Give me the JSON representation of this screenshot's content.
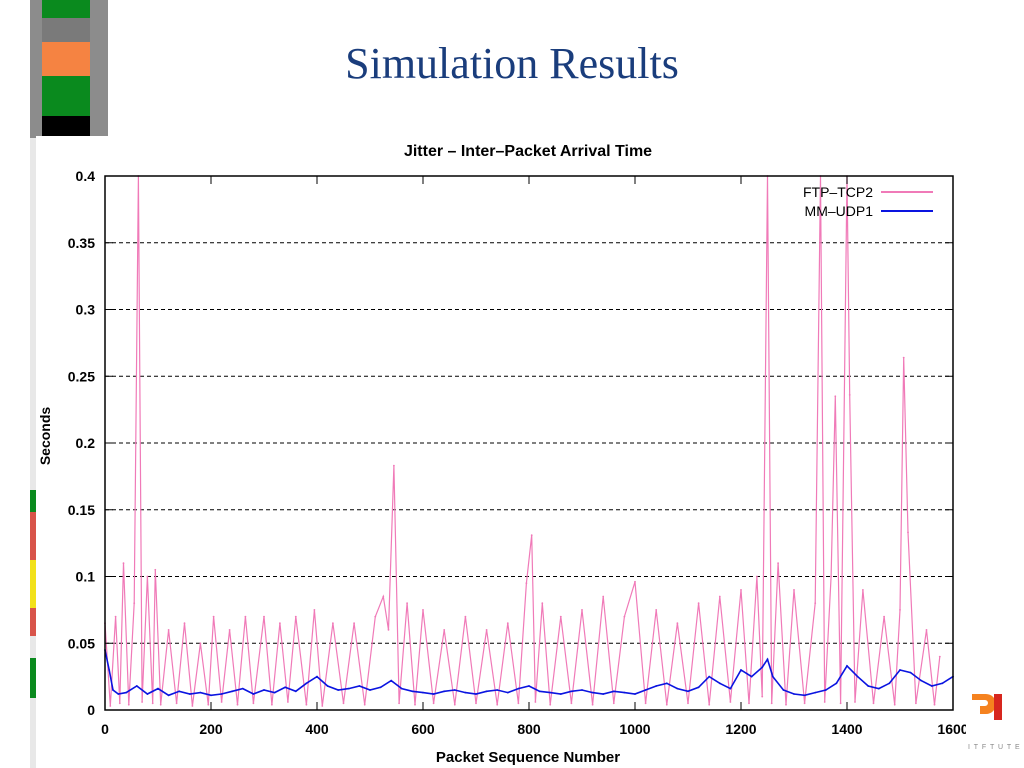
{
  "slide": {
    "title": "Simulation Results",
    "template_colors": {
      "title": "#1a3d7c",
      "strip_green": "#0a8a1e",
      "strip_orange": "#f58342",
      "strip_black": "#000000",
      "strip_gray": "#8c8c8c",
      "logo_orange": "#f5821f",
      "logo_red": "#d7261e"
    }
  },
  "chart_data": {
    "type": "line",
    "title": "Jitter – Inter–Packet Arrival Time",
    "xlabel": "Packet Sequence Number",
    "ylabel": "Seconds",
    "xlim": [
      0,
      1600
    ],
    "ylim": [
      0,
      0.4
    ],
    "xticks": [
      "0",
      "200",
      "400",
      "600",
      "800",
      "1000",
      "1200",
      "1400",
      "1600"
    ],
    "yticks": [
      "0",
      "0.05",
      "0.1",
      "0.15",
      "0.2",
      "0.25",
      "0.3",
      "0.35",
      "0.4"
    ],
    "grid": "horizontal-dashed",
    "legend": "top-right",
    "series": [
      {
        "name": "FTP–TCP2",
        "color": "#f07ab8",
        "x": [
          0,
          10,
          20,
          28,
          35,
          45,
          55,
          63,
          70,
          80,
          90,
          95,
          105,
          120,
          135,
          150,
          165,
          180,
          195,
          205,
          220,
          235,
          250,
          265,
          280,
          300,
          315,
          330,
          345,
          360,
          380,
          395,
          410,
          430,
          450,
          470,
          490,
          510,
          525,
          535,
          545,
          555,
          570,
          585,
          600,
          620,
          640,
          660,
          680,
          700,
          720,
          740,
          760,
          780,
          795,
          805,
          812,
          825,
          840,
          860,
          880,
          900,
          920,
          940,
          960,
          980,
          1000,
          1020,
          1040,
          1060,
          1080,
          1100,
          1120,
          1140,
          1160,
          1180,
          1200,
          1215,
          1230,
          1240,
          1250,
          1258,
          1270,
          1285,
          1300,
          1320,
          1340,
          1350,
          1358,
          1370,
          1378,
          1388,
          1400,
          1405,
          1415,
          1430,
          1450,
          1470,
          1490,
          1500,
          1507,
          1515,
          1530,
          1550,
          1565,
          1575
        ],
        "y": [
          0.065,
          0.003,
          0.07,
          0.005,
          0.11,
          0.004,
          0.08,
          0.4,
          0.006,
          0.1,
          0.005,
          0.105,
          0.004,
          0.06,
          0.005,
          0.065,
          0.003,
          0.05,
          0.004,
          0.07,
          0.006,
          0.06,
          0.004,
          0.07,
          0.005,
          0.07,
          0.004,
          0.065,
          0.006,
          0.07,
          0.004,
          0.075,
          0.003,
          0.065,
          0.005,
          0.065,
          0.004,
          0.07,
          0.085,
          0.06,
          0.183,
          0.005,
          0.08,
          0.004,
          0.075,
          0.005,
          0.06,
          0.004,
          0.07,
          0.005,
          0.06,
          0.004,
          0.065,
          0.005,
          0.095,
          0.131,
          0.006,
          0.08,
          0.004,
          0.07,
          0.005,
          0.075,
          0.004,
          0.085,
          0.005,
          0.07,
          0.096,
          0.005,
          0.075,
          0.004,
          0.065,
          0.005,
          0.08,
          0.004,
          0.085,
          0.006,
          0.09,
          0.005,
          0.1,
          0.01,
          0.4,
          0.005,
          0.11,
          0.004,
          0.09,
          0.005,
          0.08,
          0.4,
          0.006,
          0.1,
          0.235,
          0.005,
          0.4,
          0.236,
          0.006,
          0.09,
          0.005,
          0.07,
          0.004,
          0.075,
          0.264,
          0.133,
          0.005,
          0.06,
          0.004,
          0.04
        ]
      },
      {
        "name": "MM–UDP1",
        "color": "#0a14e0",
        "x": [
          0,
          8,
          15,
          25,
          40,
          60,
          80,
          100,
          120,
          140,
          160,
          180,
          200,
          220,
          240,
          260,
          280,
          300,
          320,
          340,
          360,
          380,
          400,
          420,
          440,
          460,
          480,
          500,
          520,
          540,
          560,
          580,
          600,
          620,
          640,
          660,
          680,
          700,
          720,
          740,
          760,
          780,
          800,
          820,
          840,
          860,
          880,
          900,
          920,
          940,
          960,
          980,
          1000,
          1020,
          1040,
          1060,
          1080,
          1100,
          1120,
          1140,
          1160,
          1180,
          1200,
          1220,
          1240,
          1250,
          1260,
          1280,
          1300,
          1320,
          1340,
          1360,
          1380,
          1400,
          1420,
          1440,
          1460,
          1480,
          1500,
          1520,
          1540,
          1560,
          1580,
          1600
        ],
        "y": [
          0.045,
          0.03,
          0.015,
          0.012,
          0.013,
          0.018,
          0.012,
          0.016,
          0.011,
          0.014,
          0.012,
          0.013,
          0.011,
          0.012,
          0.014,
          0.016,
          0.012,
          0.015,
          0.013,
          0.017,
          0.014,
          0.02,
          0.025,
          0.018,
          0.015,
          0.016,
          0.018,
          0.015,
          0.017,
          0.022,
          0.016,
          0.014,
          0.013,
          0.012,
          0.014,
          0.015,
          0.013,
          0.012,
          0.014,
          0.015,
          0.013,
          0.016,
          0.018,
          0.014,
          0.013,
          0.012,
          0.014,
          0.015,
          0.013,
          0.012,
          0.014,
          0.013,
          0.012,
          0.015,
          0.018,
          0.02,
          0.016,
          0.014,
          0.017,
          0.025,
          0.02,
          0.016,
          0.03,
          0.025,
          0.032,
          0.038,
          0.025,
          0.015,
          0.012,
          0.011,
          0.013,
          0.015,
          0.02,
          0.033,
          0.025,
          0.018,
          0.016,
          0.02,
          0.03,
          0.028,
          0.022,
          0.018,
          0.02,
          0.025
        ]
      }
    ]
  }
}
